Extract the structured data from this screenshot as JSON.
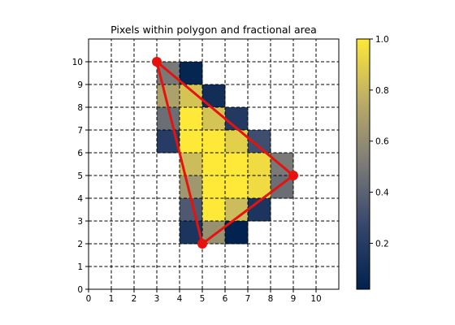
{
  "chart_data": {
    "type": "heatmap",
    "title": "Pixels within polygon and fractional area",
    "xlabel": "",
    "ylabel": "",
    "xlim": [
      0,
      11
    ],
    "ylim": [
      0,
      11
    ],
    "xticks": [
      "0",
      "1",
      "2",
      "3",
      "4",
      "5",
      "6",
      "7",
      "8",
      "9",
      "10"
    ],
    "yticks": [
      "0",
      "1",
      "2",
      "3",
      "4",
      "5",
      "6",
      "7",
      "8",
      "9",
      "10"
    ],
    "grid": true,
    "grid_style": "dashed",
    "colormap": "cividis",
    "cells": [
      {
        "x": 3,
        "y": 9,
        "value": 0.5
      },
      {
        "x": 4,
        "y": 9,
        "value": 0.05
      },
      {
        "x": 3,
        "y": 8,
        "value": 0.7
      },
      {
        "x": 4,
        "y": 8,
        "value": 0.85
      },
      {
        "x": 5,
        "y": 8,
        "value": 0.1
      },
      {
        "x": 3,
        "y": 7,
        "value": 0.45
      },
      {
        "x": 4,
        "y": 7,
        "value": 1.0
      },
      {
        "x": 5,
        "y": 7,
        "value": 0.85
      },
      {
        "x": 6,
        "y": 7,
        "value": 0.18
      },
      {
        "x": 3,
        "y": 6,
        "value": 0.2
      },
      {
        "x": 4,
        "y": 6,
        "value": 1.0
      },
      {
        "x": 5,
        "y": 6,
        "value": 1.0
      },
      {
        "x": 6,
        "y": 6,
        "value": 0.9
      },
      {
        "x": 7,
        "y": 6,
        "value": 0.3
      },
      {
        "x": 4,
        "y": 5,
        "value": 0.82
      },
      {
        "x": 5,
        "y": 5,
        "value": 1.0
      },
      {
        "x": 6,
        "y": 5,
        "value": 1.0
      },
      {
        "x": 7,
        "y": 5,
        "value": 0.95
      },
      {
        "x": 8,
        "y": 5,
        "value": 0.5
      },
      {
        "x": 4,
        "y": 4,
        "value": 0.65
      },
      {
        "x": 5,
        "y": 4,
        "value": 1.0
      },
      {
        "x": 6,
        "y": 4,
        "value": 1.0
      },
      {
        "x": 7,
        "y": 4,
        "value": 0.95
      },
      {
        "x": 8,
        "y": 4,
        "value": 0.45
      },
      {
        "x": 4,
        "y": 3,
        "value": 0.35
      },
      {
        "x": 5,
        "y": 3,
        "value": 1.0
      },
      {
        "x": 6,
        "y": 3,
        "value": 0.82
      },
      {
        "x": 7,
        "y": 3,
        "value": 0.15
      },
      {
        "x": 4,
        "y": 2,
        "value": 0.15
      },
      {
        "x": 5,
        "y": 2,
        "value": 0.62
      },
      {
        "x": 6,
        "y": 2,
        "value": 0.03
      }
    ],
    "polygon": [
      [
        3,
        10
      ],
      [
        9,
        5
      ],
      [
        5,
        2
      ]
    ],
    "polygon_color": "#e8110e",
    "colorbar": {
      "min": 0.02,
      "max": 1.0,
      "ticks": [
        {
          "value": 0.2,
          "label": "0.2"
        },
        {
          "value": 0.4,
          "label": "0.4"
        },
        {
          "value": 0.6,
          "label": "0.6"
        },
        {
          "value": 0.8,
          "label": "0.8"
        },
        {
          "value": 1.0,
          "label": "1.0"
        }
      ]
    }
  }
}
